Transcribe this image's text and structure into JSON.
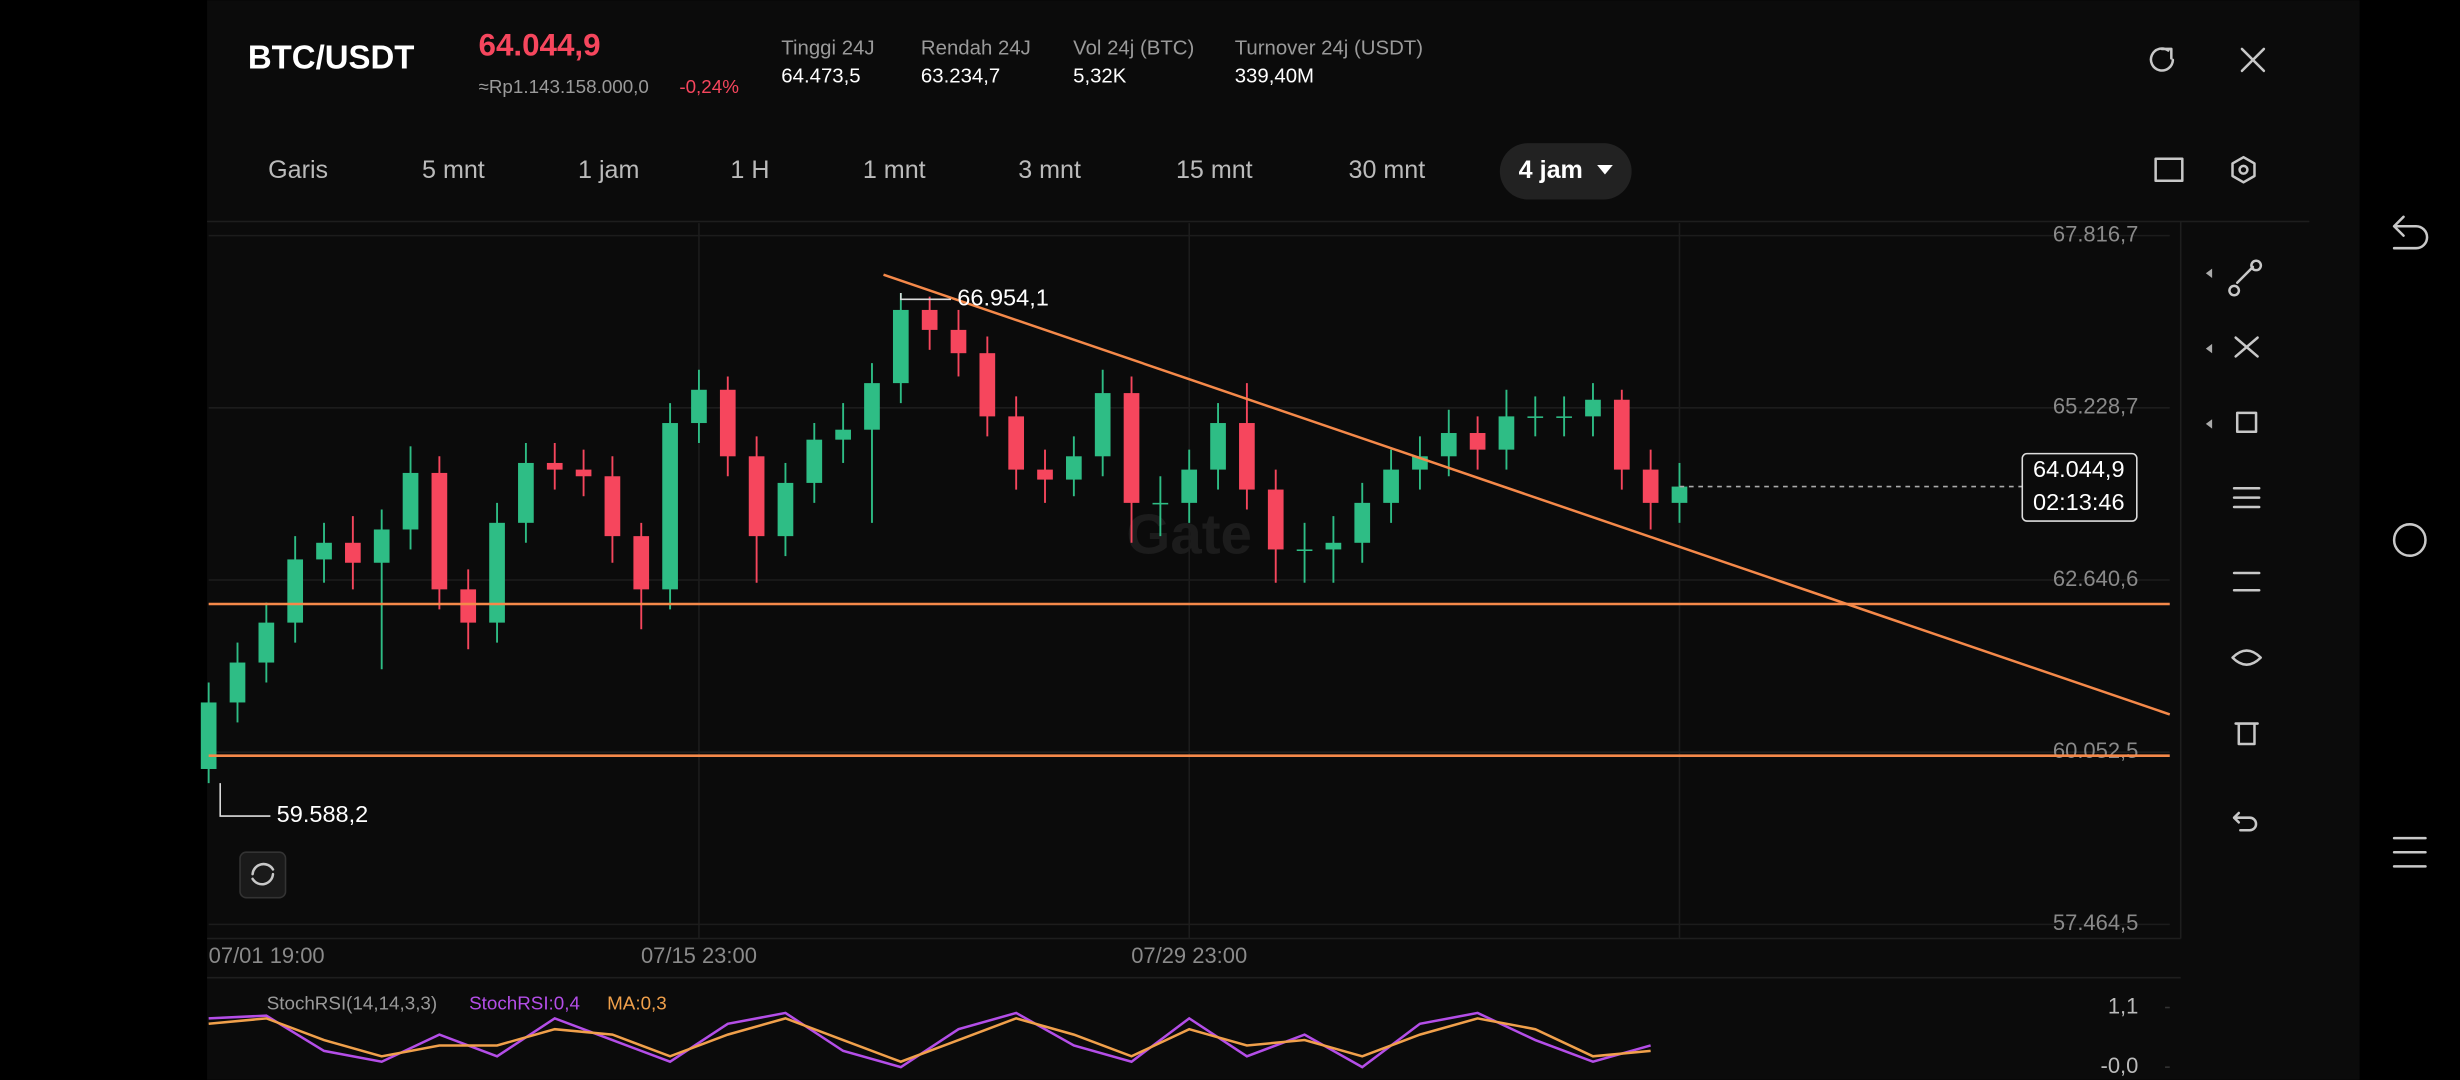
{
  "header": {
    "symbol": "BTC/USDT",
    "price": "64.044,9",
    "price_idr": "≈Rp1.143.158.000,0",
    "change": "-0,24%",
    "stats": [
      {
        "label": "Tinggi 24J",
        "value": "64.473,5"
      },
      {
        "label": "Rendah 24J",
        "value": "63.234,7"
      },
      {
        "label": "Vol 24j (BTC)",
        "value": "5,32K"
      },
      {
        "label": "Turnover 24j (USDT)",
        "value": "339,40M"
      }
    ]
  },
  "toolbar": {
    "timeframes": [
      "Garis",
      "5 mnt",
      "1 jam",
      "1 H",
      "1 mnt",
      "3 mnt",
      "15 mnt",
      "30 mnt"
    ],
    "active_timeframe": "4 jam"
  },
  "chart_data": [
    {
      "type": "candlestick",
      "watermark": "Gate",
      "x": [
        0,
        5,
        10,
        15,
        20,
        25,
        30,
        35,
        40,
        45,
        50,
        55,
        60,
        65,
        70,
        75,
        80,
        85,
        90,
        95,
        100,
        105,
        110,
        115,
        120,
        125,
        130,
        135,
        140,
        145,
        150,
        155,
        160,
        165,
        170,
        175,
        180,
        185,
        190,
        195,
        200,
        205,
        210,
        215,
        220,
        225,
        230,
        235,
        240,
        245,
        250,
        255
      ],
      "open": [
        59800,
        60800,
        61400,
        62000,
        62950,
        63200,
        62900,
        63400,
        64250,
        62500,
        62000,
        63500,
        64400,
        64300,
        64200,
        63300,
        62500,
        65000,
        65500,
        64500,
        63300,
        64100,
        64750,
        64900,
        65600,
        66700,
        66400,
        66050,
        65100,
        64300,
        64150,
        64500,
        65450,
        63800,
        63800,
        64300,
        65000,
        64000,
        63100,
        63100,
        63200,
        63800,
        64300,
        64500,
        64850,
        64600,
        65100,
        65100,
        65100,
        65350,
        64300,
        63800
      ],
      "high": [
        61100,
        61700,
        62300,
        63300,
        63500,
        63600,
        63700,
        64650,
        64500,
        62800,
        63800,
        64700,
        64700,
        64600,
        64500,
        63500,
        65300,
        65800,
        65700,
        64800,
        64400,
        65000,
        65300,
        65900,
        66954.1,
        66900,
        66700,
        66300,
        65400,
        64600,
        64800,
        65800,
        65700,
        64200,
        64600,
        65300,
        65600,
        64300,
        63500,
        63600,
        64100,
        64600,
        64800,
        65200,
        65100,
        65500,
        65400,
        65400,
        65600,
        65500,
        64600,
        64400
      ],
      "low": [
        59588.2,
        60500,
        61100,
        61700,
        62600,
        62500,
        61300,
        63100,
        62200,
        61600,
        61700,
        63200,
        64000,
        63900,
        62900,
        61900,
        62200,
        64700,
        64200,
        62600,
        63000,
        63800,
        64400,
        63500,
        65300,
        66100,
        65700,
        64800,
        64000,
        63800,
        63900,
        64200,
        63200,
        63300,
        63500,
        64000,
        63700,
        62600,
        62600,
        62600,
        62900,
        63500,
        64000,
        64200,
        64300,
        64300,
        64800,
        64800,
        64800,
        64000,
        63400,
        63500
      ],
      "close": [
        60800,
        61400,
        62000,
        62950,
        63200,
        62900,
        63400,
        64250,
        62500,
        62000,
        63500,
        64400,
        64300,
        64200,
        63300,
        62500,
        65000,
        65500,
        64500,
        63300,
        64100,
        64750,
        64900,
        65600,
        66700,
        66400,
        66050,
        65100,
        64300,
        64150,
        64500,
        65450,
        63800,
        63800,
        64300,
        65000,
        64000,
        63100,
        63100,
        63200,
        63800,
        64300,
        64500,
        64850,
        64600,
        65100,
        65100,
        65100,
        65350,
        64300,
        63800,
        64044.9
      ],
      "up_color": "#2ebd85",
      "down_color": "#f6465d",
      "xlim": [
        0,
        340
      ],
      "xticks": [
        {
          "value": 0,
          "label": "07/01 19:00"
        },
        {
          "value": 85,
          "label": "07/15 23:00"
        },
        {
          "value": 170,
          "label": "07/29 23:00"
        }
      ],
      "ylim": [
        57464.5,
        67816.7
      ],
      "yticks": [
        {
          "value": 67816.7,
          "label": "67.816,7"
        },
        {
          "value": 65228.7,
          "label": "65.228,7"
        },
        {
          "value": 62640.6,
          "label": "62.640,6"
        },
        {
          "value": 60052.5,
          "label": "60.052,5"
        },
        {
          "value": 57464.5,
          "label": "57.464,5"
        }
      ],
      "grid": true,
      "annotations": [
        {
          "x": 120,
          "value": 66954.1,
          "label": "66.954,1"
        },
        {
          "x": 2,
          "value": 59588.2,
          "label": "59.588,2"
        }
      ],
      "hlines": [
        62280,
        60000
      ],
      "line_color": "#f5894a",
      "trendline": {
        "x": [
          117,
          340
        ],
        "y": [
          67230,
          60620
        ]
      },
      "price_tag": {
        "value": 64044.9,
        "label": "64.044,9",
        "countdown": "02:13:46"
      }
    },
    {
      "type": "line",
      "title": "StochRSI(14,14,3,3)",
      "x": [
        0,
        10,
        20,
        30,
        40,
        50,
        60,
        70,
        80,
        90,
        100,
        110,
        120,
        130,
        140,
        150,
        160,
        170,
        180,
        190,
        200,
        210,
        220,
        230,
        240,
        250
      ],
      "xlim": [
        0,
        340
      ],
      "ylim": [
        0,
        1.1
      ],
      "yticks": [
        {
          "value": 1.1,
          "label": "1,1"
        },
        {
          "value": 0,
          "label": "-0,0"
        }
      ],
      "series": [
        {
          "name": "StochRSI:0,4",
          "color": "#b44ee8",
          "values": [
            0.9,
            0.95,
            0.3,
            0.1,
            0.6,
            0.2,
            0.9,
            0.5,
            0.1,
            0.8,
            1.0,
            0.3,
            0.0,
            0.7,
            1.0,
            0.4,
            0.1,
            0.9,
            0.2,
            0.6,
            0.0,
            0.8,
            1.0,
            0.5,
            0.1,
            0.4
          ]
        },
        {
          "name": "MA:0,3",
          "color": "#f0a04b",
          "values": [
            0.8,
            0.9,
            0.5,
            0.2,
            0.4,
            0.4,
            0.7,
            0.6,
            0.2,
            0.6,
            0.9,
            0.5,
            0.1,
            0.5,
            0.9,
            0.6,
            0.2,
            0.7,
            0.4,
            0.5,
            0.2,
            0.6,
            0.9,
            0.7,
            0.2,
            0.3
          ]
        }
      ]
    }
  ]
}
